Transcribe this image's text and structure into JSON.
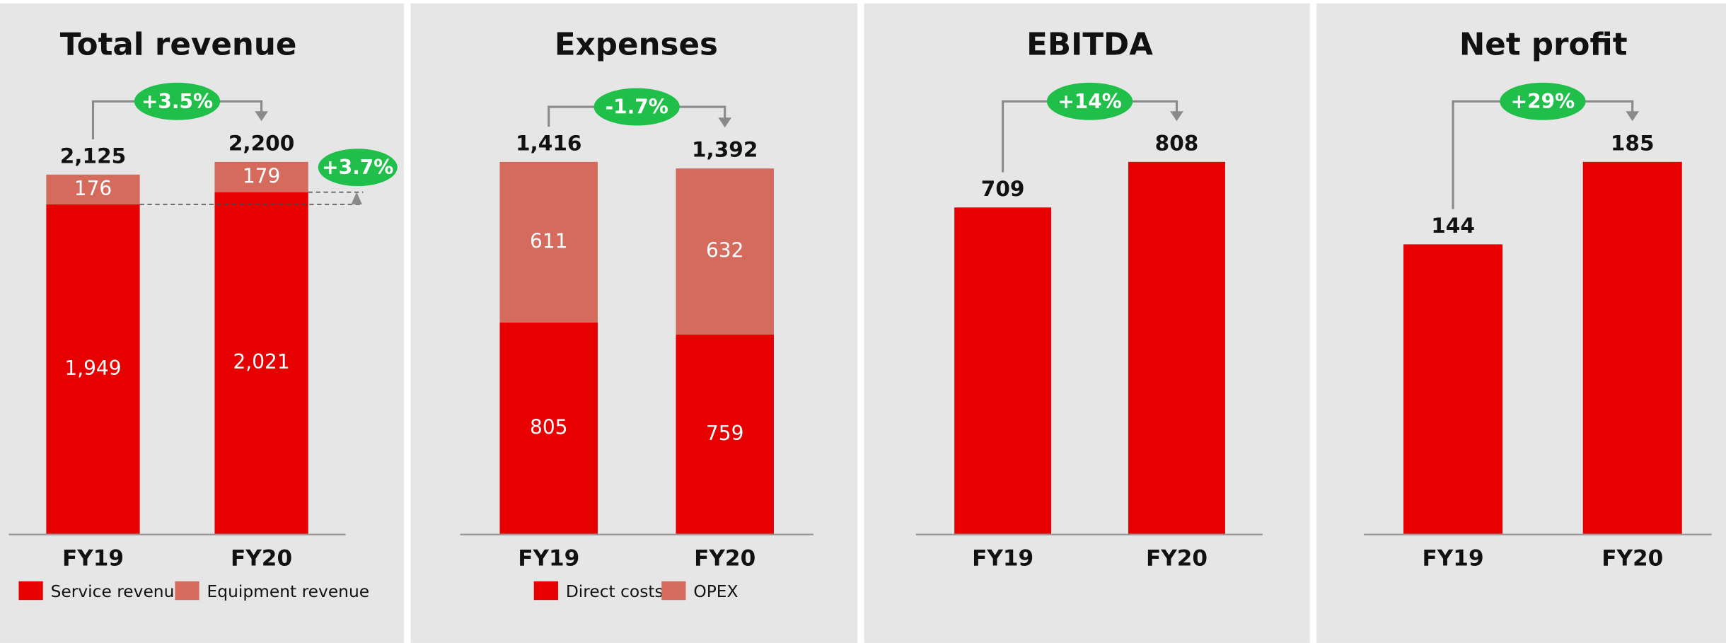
{
  "chart_data": [
    {
      "type": "stacked_bar",
      "title": "Total revenue",
      "categories": [
        "FY19",
        "FY20"
      ],
      "series": [
        {
          "name": "Service revenue",
          "color": "#e60000",
          "values": [
            1949,
            2021
          ],
          "value_labels": [
            "1,949",
            "2,021"
          ]
        },
        {
          "name": "Equipment revenue",
          "color": "#d46b5c",
          "values": [
            176,
            179
          ]
        }
      ],
      "totals": [
        2125,
        2200
      ],
      "total_labels": [
        "2,125",
        "2,200"
      ],
      "annotations": [
        "+3.5%",
        "+3.7%"
      ]
    },
    {
      "type": "stacked_bar",
      "title": "Expenses",
      "categories": [
        "FY19",
        "FY20"
      ],
      "series": [
        {
          "name": "Direct costs",
          "color": "#e60000",
          "values": [
            805,
            759
          ]
        },
        {
          "name": "OPEX",
          "color": "#d46b5c",
          "values": [
            611,
            632
          ]
        }
      ],
      "totals": [
        1416,
        1392
      ],
      "total_labels": [
        "1,416",
        "1,392"
      ],
      "annotations": [
        "-1.7%"
      ]
    },
    {
      "type": "bar",
      "title": "EBITDA",
      "categories": [
        "FY19",
        "FY20"
      ],
      "values": [
        709,
        808
      ],
      "color": "#e60000",
      "annotations": [
        "+14%"
      ]
    },
    {
      "type": "bar",
      "title": "Net profit",
      "categories": [
        "FY19",
        "FY20"
      ],
      "values": [
        144,
        185
      ],
      "color": "#e60000",
      "annotations": [
        "+29%"
      ]
    }
  ]
}
